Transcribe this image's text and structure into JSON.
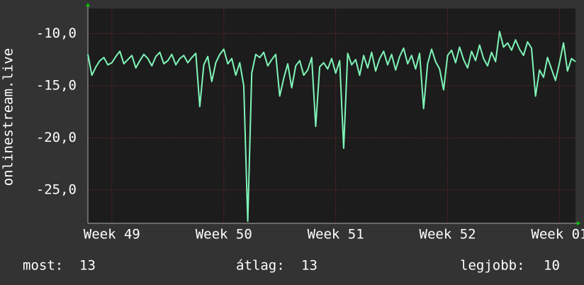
{
  "chart_data": {
    "type": "line",
    "ylabel": "onlinestream.live",
    "xlim": [
      0,
      30.5
    ],
    "xticks": [
      {
        "value": 1.5,
        "label": "Week 49"
      },
      {
        "value": 8.5,
        "label": "Week 50"
      },
      {
        "value": 15.5,
        "label": "Week 51"
      },
      {
        "value": 22.5,
        "label": "Week 52"
      },
      {
        "value": 29.5,
        "label": "Week 01"
      }
    ],
    "ylim": [
      -28.2,
      -7.6
    ],
    "yticks": [
      {
        "value": -10,
        "label": "-10,0"
      },
      {
        "value": -15,
        "label": "-15,0"
      },
      {
        "value": -20,
        "label": "-20,0"
      },
      {
        "value": -25,
        "label": "-25,0"
      }
    ],
    "grid": true,
    "series": [
      {
        "color": "#7ff5b8",
        "x": [
          0,
          0.25,
          0.5,
          0.75,
          1,
          1.25,
          1.5,
          1.75,
          2,
          2.25,
          2.5,
          2.75,
          3,
          3.25,
          3.5,
          3.75,
          4,
          4.25,
          4.5,
          4.75,
          5,
          5.25,
          5.5,
          5.75,
          6,
          6.25,
          6.5,
          6.75,
          7,
          7.25,
          7.5,
          7.75,
          8,
          8.25,
          8.5,
          8.75,
          9,
          9.25,
          9.5,
          9.75,
          10,
          10.25,
          10.5,
          10.75,
          11,
          11.25,
          11.5,
          11.75,
          12,
          12.25,
          12.5,
          12.75,
          13,
          13.25,
          13.5,
          13.75,
          14,
          14.25,
          14.5,
          14.75,
          15,
          15.25,
          15.5,
          15.75,
          16,
          16.25,
          16.5,
          16.75,
          17,
          17.25,
          17.5,
          17.75,
          18,
          18.25,
          18.5,
          18.75,
          19,
          19.25,
          19.5,
          19.75,
          20,
          20.25,
          20.5,
          20.75,
          21,
          21.25,
          21.5,
          21.75,
          22,
          22.25,
          22.5,
          22.75,
          23,
          23.25,
          23.5,
          23.75,
          24,
          24.25,
          24.5,
          24.75,
          25,
          25.25,
          25.5,
          25.75,
          26,
          26.25,
          26.5,
          26.75,
          27,
          27.25,
          27.5,
          27.75,
          28,
          28.25,
          28.5,
          28.75,
          29,
          29.25,
          29.5,
          29.75,
          30,
          30.25,
          30.5
        ],
        "values": [
          -12.0,
          -14.0,
          -13.2,
          -12.6,
          -12.3,
          -13.0,
          -12.8,
          -12.2,
          -11.7,
          -12.9,
          -12.5,
          -12.1,
          -13.3,
          -12.6,
          -12.0,
          -12.4,
          -13.1,
          -12.2,
          -11.8,
          -12.9,
          -12.6,
          -12.0,
          -13.0,
          -12.4,
          -12.1,
          -12.8,
          -12.3,
          -11.9,
          -17.0,
          -13.0,
          -12.2,
          -14.6,
          -12.8,
          -12.0,
          -11.5,
          -12.9,
          -12.4,
          -14.0,
          -12.8,
          -15.0,
          -28.0,
          -13.8,
          -12.0,
          -12.3,
          -11.8,
          -13.1,
          -12.5,
          -12.0,
          -16.0,
          -14.3,
          -12.9,
          -15.2,
          -13.1,
          -12.6,
          -14.0,
          -13.5,
          -12.3,
          -18.9,
          -13.2,
          -12.8,
          -13.4,
          -12.4,
          -13.8,
          -12.6,
          -21.0,
          -11.9,
          -13.0,
          -12.5,
          -14.0,
          -12.1,
          -13.3,
          -11.8,
          -13.6,
          -12.4,
          -11.7,
          -13.0,
          -12.0,
          -13.5,
          -12.2,
          -11.4,
          -12.9,
          -12.1,
          -13.4,
          -11.9,
          -17.2,
          -12.9,
          -11.5,
          -12.7,
          -13.4,
          -15.4,
          -12.1,
          -11.6,
          -12.8,
          -11.3,
          -12.5,
          -13.3,
          -11.7,
          -12.6,
          -11.1,
          -12.4,
          -13.1,
          -11.8,
          -12.7,
          -9.8,
          -11.3,
          -10.9,
          -11.6,
          -10.6,
          -11.5,
          -12.1,
          -10.8,
          -11.4,
          -16.0,
          -13.5,
          -14.2,
          -12.3,
          -13.4,
          -14.5,
          -12.8,
          -10.9,
          -13.6,
          -12.4,
          -12.7
        ]
      }
    ]
  },
  "stats": [
    {
      "label": "most:",
      "value": 13
    },
    {
      "label": "átlag:",
      "value": 13
    },
    {
      "label": "legjobb:",
      "value": 10
    }
  ]
}
